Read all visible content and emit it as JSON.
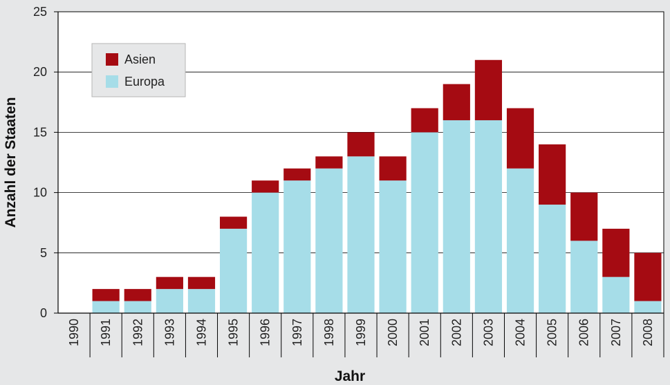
{
  "chart_data": {
    "type": "bar",
    "stacked": true,
    "title": "",
    "xlabel": "Jahr",
    "ylabel": "Anzahl der Staaten",
    "ylim": [
      0,
      25
    ],
    "yticks": [
      0,
      5,
      10,
      15,
      20,
      25
    ],
    "grid": true,
    "legend_position": "top-left",
    "categories": [
      "1990",
      "1991",
      "1992",
      "1993",
      "1994",
      "1995",
      "1996",
      "1997",
      "1998",
      "1999",
      "2000",
      "2001",
      "2002",
      "2003",
      "2004",
      "2005",
      "2006",
      "2007",
      "2008"
    ],
    "series": [
      {
        "name": "Europa",
        "color": "#a6dde8",
        "values": [
          0,
          1,
          1,
          2,
          2,
          7,
          10,
          11,
          12,
          13,
          11,
          15,
          16,
          16,
          12,
          9,
          6,
          3,
          1
        ]
      },
      {
        "name": "Asien",
        "color": "#a50b12",
        "values": [
          0,
          1,
          1,
          1,
          1,
          1,
          1,
          1,
          1,
          2,
          2,
          2,
          3,
          5,
          5,
          5,
          4,
          4,
          4
        ]
      }
    ],
    "legend_order": [
      "Asien",
      "Europa"
    ]
  }
}
